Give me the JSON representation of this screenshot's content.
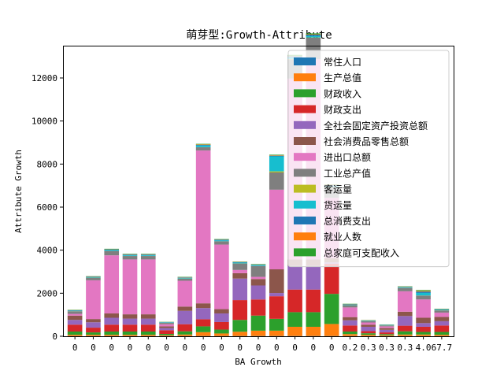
{
  "chart_data": {
    "type": "bar",
    "stacked": true,
    "title": "萌芽型:Growth-Attribute",
    "xlabel": "BA Growth",
    "ylabel": "Attribute Growth",
    "ylim": [
      0,
      13500
    ],
    "yticks": [
      0,
      2000,
      4000,
      6000,
      8000,
      10000,
      12000
    ],
    "categories": [
      "0",
      "0",
      "0",
      "0",
      "0",
      "0",
      "0",
      "0",
      "0",
      "0",
      "0",
      "0",
      "0",
      "0",
      "0",
      "0.2",
      "0.3",
      "0.3",
      "0.3",
      "4.0",
      "67.7"
    ],
    "legend_position": "upper right",
    "grid": false,
    "series": [
      {
        "name": "常住人口",
        "color": "#1f77b4",
        "values": [
          10,
          10,
          10,
          10,
          10,
          10,
          10,
          10,
          10,
          10,
          10,
          10,
          10,
          10,
          10,
          10,
          10,
          10,
          10,
          10,
          10
        ]
      },
      {
        "name": "生产总值",
        "color": "#ff7f0e",
        "values": [
          60,
          60,
          60,
          60,
          60,
          40,
          70,
          180,
          120,
          200,
          250,
          250,
          430,
          430,
          560,
          90,
          60,
          40,
          70,
          70,
          60
        ]
      },
      {
        "name": "财政收入",
        "color": "#2ca02c",
        "values": [
          150,
          110,
          150,
          150,
          150,
          60,
          150,
          270,
          180,
          550,
          700,
          550,
          680,
          680,
          1400,
          120,
          70,
          50,
          150,
          120,
          130
        ]
      },
      {
        "name": "财政支出",
        "color": "#d62728",
        "values": [
          320,
          220,
          320,
          320,
          320,
          170,
          330,
          330,
          350,
          920,
          750,
          1050,
          1050,
          1050,
          1400,
          280,
          100,
          80,
          260,
          240,
          300
        ]
      },
      {
        "name": "全社会固定资产投资总额",
        "color": "#9467bd",
        "values": [
          220,
          250,
          320,
          280,
          280,
          100,
          620,
          520,
          400,
          1000,
          650,
          150,
          1100,
          1100,
          60,
          240,
          200,
          120,
          450,
          170,
          200
        ]
      },
      {
        "name": "社会消费品零售总额",
        "color": "#8c564b",
        "values": [
          200,
          150,
          200,
          200,
          200,
          80,
          200,
          220,
          200,
          250,
          300,
          1100,
          300,
          300,
          200,
          150,
          100,
          80,
          200,
          250,
          200
        ]
      },
      {
        "name": "进出口总额",
        "color": "#e377c2",
        "values": [
          80,
          1800,
          2700,
          2550,
          2550,
          100,
          1200,
          7100,
          3000,
          150,
          100,
          3700,
          8400,
          9300,
          2800,
          450,
          100,
          80,
          950,
          850,
          200
        ]
      },
      {
        "name": "工业总产值",
        "color": "#7f7f7f",
        "values": [
          120,
          120,
          200,
          160,
          160,
          60,
          100,
          150,
          150,
          300,
          500,
          800,
          900,
          1000,
          500,
          100,
          60,
          40,
          150,
          180,
          100
        ]
      },
      {
        "name": "客运量",
        "color": "#bcbd22",
        "values": [
          5,
          5,
          5,
          5,
          5,
          5,
          5,
          5,
          5,
          5,
          5,
          50,
          10,
          10,
          10,
          5,
          5,
          5,
          5,
          5,
          5
        ]
      },
      {
        "name": "货运量",
        "color": "#17becf",
        "values": [
          20,
          20,
          40,
          30,
          30,
          20,
          30,
          80,
          40,
          40,
          40,
          700,
          70,
          70,
          50,
          20,
          20,
          20,
          30,
          120,
          30
        ]
      },
      {
        "name": "总消费支出",
        "color": "#1f77b4",
        "values": [
          20,
          20,
          30,
          30,
          30,
          10,
          20,
          30,
          30,
          20,
          20,
          30,
          60,
          60,
          30,
          20,
          10,
          10,
          20,
          60,
          20
        ]
      },
      {
        "name": "就业人数",
        "color": "#ff7f0e",
        "values": [
          10,
          10,
          10,
          10,
          10,
          5,
          10,
          20,
          10,
          10,
          10,
          20,
          20,
          20,
          20,
          10,
          10,
          5,
          10,
          30,
          10
        ]
      },
      {
        "name": "总家庭可支配收入",
        "color": "#2ca02c",
        "values": [
          15,
          15,
          20,
          20,
          20,
          10,
          15,
          25,
          20,
          15,
          20,
          25,
          40,
          40,
          20,
          15,
          10,
          10,
          15,
          40,
          15
        ]
      }
    ]
  }
}
